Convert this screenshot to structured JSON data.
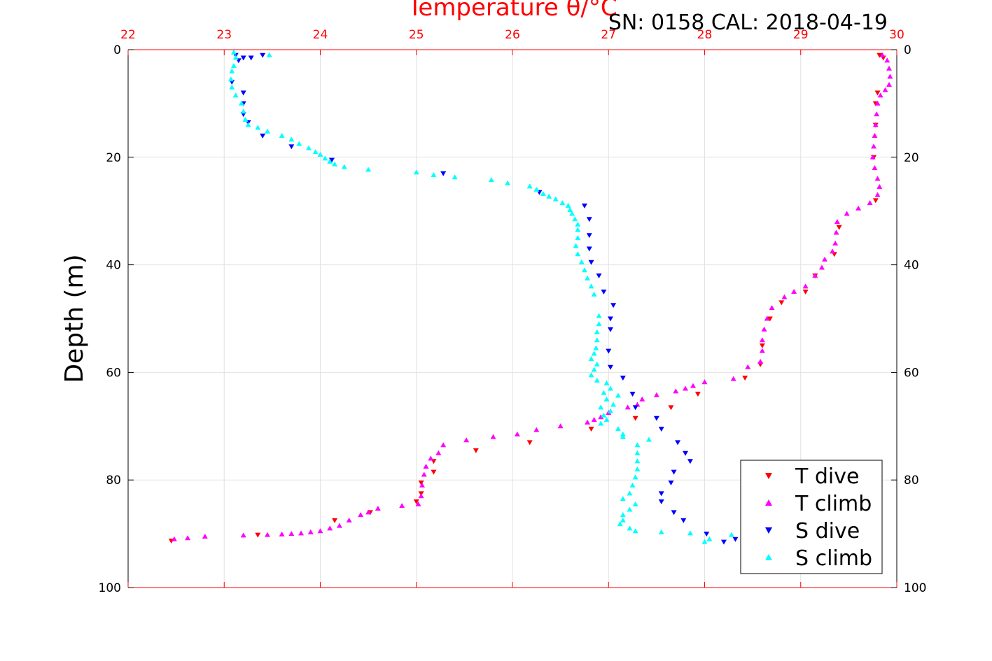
{
  "chart_data": {
    "type": "scatter",
    "title": "Temperature θ/°C",
    "annotation": "SN: 0158  CAL: 2018-04-19",
    "xlabel": "Temperature θ/°C",
    "ylabel": "Depth (m)",
    "xlim": [
      22,
      30
    ],
    "ylim": [
      0,
      100
    ],
    "y_inverted": true,
    "x_axis_position": "top",
    "grid": true,
    "legend_position": "bottom-right",
    "x_ticks": [
      22,
      23,
      24,
      25,
      26,
      27,
      28,
      29,
      30
    ],
    "y_ticks": [
      0,
      20,
      40,
      60,
      80,
      100
    ],
    "colors": {
      "axis_top": "#ff0000",
      "axis_other": "#000000",
      "grid": "#e2e2e2"
    },
    "series": [
      {
        "name": "T dive",
        "color": "#ff0000",
        "marker": "triangle-down",
        "points": [
          [
            29.82,
            1
          ],
          [
            29.86,
            1.5
          ],
          [
            29.8,
            8
          ],
          [
            29.78,
            10
          ],
          [
            29.78,
            14
          ],
          [
            29.76,
            20
          ],
          [
            29.78,
            28
          ],
          [
            29.4,
            33
          ],
          [
            29.35,
            38
          ],
          [
            29.15,
            42
          ],
          [
            29.05,
            45
          ],
          [
            28.8,
            47
          ],
          [
            28.68,
            50
          ],
          [
            28.6,
            55
          ],
          [
            28.58,
            58.5
          ],
          [
            28.42,
            61
          ],
          [
            27.93,
            64
          ],
          [
            27.65,
            66.5
          ],
          [
            27.28,
            68.5
          ],
          [
            26.82,
            70.5
          ],
          [
            26.18,
            73
          ],
          [
            25.62,
            74.5
          ],
          [
            25.18,
            76.5
          ],
          [
            25.18,
            78.5
          ],
          [
            25.05,
            80.5
          ],
          [
            25.05,
            82.5
          ],
          [
            25.0,
            84
          ],
          [
            24.52,
            86
          ],
          [
            24.15,
            87.5
          ],
          [
            23.35,
            90.2
          ],
          [
            22.45,
            91.3
          ]
        ]
      },
      {
        "name": "T climb",
        "color": "#ff00ff",
        "marker": "triangle-up",
        "points": [
          [
            29.85,
            1
          ],
          [
            29.9,
            2
          ],
          [
            29.92,
            3.5
          ],
          [
            29.93,
            5
          ],
          [
            29.92,
            6.5
          ],
          [
            29.88,
            7.5
          ],
          [
            29.83,
            8.5
          ],
          [
            29.8,
            10
          ],
          [
            29.79,
            12
          ],
          [
            29.78,
            14
          ],
          [
            29.77,
            16
          ],
          [
            29.76,
            18
          ],
          [
            29.75,
            20
          ],
          [
            29.77,
            22
          ],
          [
            29.8,
            24
          ],
          [
            29.82,
            25.5
          ],
          [
            29.8,
            27
          ],
          [
            29.72,
            28.5
          ],
          [
            29.6,
            29.5
          ],
          [
            29.48,
            30.5
          ],
          [
            29.38,
            32
          ],
          [
            29.37,
            34
          ],
          [
            29.36,
            36
          ],
          [
            29.33,
            37.5
          ],
          [
            29.25,
            39
          ],
          [
            29.22,
            40.5
          ],
          [
            29.15,
            42
          ],
          [
            29.05,
            44
          ],
          [
            28.93,
            45
          ],
          [
            28.83,
            46
          ],
          [
            28.7,
            48
          ],
          [
            28.65,
            50
          ],
          [
            28.62,
            52
          ],
          [
            28.6,
            54
          ],
          [
            28.6,
            56
          ],
          [
            28.58,
            58
          ],
          [
            28.45,
            59
          ],
          [
            28.3,
            61.2
          ],
          [
            28.0,
            61.8
          ],
          [
            27.88,
            62.5
          ],
          [
            27.8,
            63
          ],
          [
            27.7,
            63.5
          ],
          [
            27.5,
            64.2
          ],
          [
            27.35,
            65
          ],
          [
            27.3,
            66
          ],
          [
            27.2,
            66.5
          ],
          [
            27.0,
            67.5
          ],
          [
            26.92,
            68.3
          ],
          [
            26.85,
            68.8
          ],
          [
            26.78,
            69.3
          ],
          [
            26.5,
            70
          ],
          [
            26.25,
            70.7
          ],
          [
            26.05,
            71.5
          ],
          [
            25.8,
            72
          ],
          [
            25.52,
            72.6
          ],
          [
            25.28,
            73.5
          ],
          [
            25.23,
            75
          ],
          [
            25.15,
            76
          ],
          [
            25.1,
            77.5
          ],
          [
            25.08,
            79
          ],
          [
            25.06,
            81
          ],
          [
            25.05,
            83
          ],
          [
            25.02,
            84.5
          ],
          [
            24.85,
            84.8
          ],
          [
            24.6,
            85.3
          ],
          [
            24.5,
            86
          ],
          [
            24.42,
            86.5
          ],
          [
            24.3,
            87.5
          ],
          [
            24.2,
            88.5
          ],
          [
            24.1,
            89
          ],
          [
            24.0,
            89.5
          ],
          [
            23.9,
            89.7
          ],
          [
            23.8,
            89.9
          ],
          [
            23.7,
            90.0
          ],
          [
            23.6,
            90.1
          ],
          [
            23.45,
            90.2
          ],
          [
            23.2,
            90.3
          ],
          [
            22.8,
            90.5
          ],
          [
            22.62,
            90.8
          ],
          [
            22.48,
            91.0
          ]
        ]
      },
      {
        "name": "S dive",
        "color": "#0000ff",
        "marker": "triangle-down",
        "points": [
          [
            23.4,
            1
          ],
          [
            23.28,
            1.5
          ],
          [
            23.12,
            1
          ],
          [
            23.15,
            2
          ],
          [
            23.2,
            1.5
          ],
          [
            23.08,
            6
          ],
          [
            23.2,
            8
          ],
          [
            23.2,
            10
          ],
          [
            23.2,
            12
          ],
          [
            23.25,
            13.5
          ],
          [
            23.4,
            16
          ],
          [
            23.7,
            18
          ],
          [
            24.12,
            20.5
          ],
          [
            25.28,
            23
          ],
          [
            26.28,
            26.5
          ],
          [
            26.75,
            29
          ],
          [
            26.8,
            31.5
          ],
          [
            26.8,
            34.5
          ],
          [
            26.8,
            37
          ],
          [
            26.82,
            39.5
          ],
          [
            26.9,
            42
          ],
          [
            26.95,
            45
          ],
          [
            27.05,
            47.5
          ],
          [
            27.02,
            50
          ],
          [
            27.02,
            52
          ],
          [
            27.0,
            56
          ],
          [
            27.02,
            59
          ],
          [
            27.15,
            61
          ],
          [
            27.25,
            64
          ],
          [
            27.28,
            66.5
          ],
          [
            27.5,
            68.5
          ],
          [
            27.55,
            70.5
          ],
          [
            27.72,
            73
          ],
          [
            27.8,
            75
          ],
          [
            27.85,
            76.5
          ],
          [
            27.68,
            78.5
          ],
          [
            27.65,
            80.5
          ],
          [
            27.55,
            82.5
          ],
          [
            27.55,
            84
          ],
          [
            27.68,
            86
          ],
          [
            27.78,
            87.5
          ],
          [
            28.02,
            90
          ],
          [
            28.2,
            91.5
          ],
          [
            28.32,
            91
          ]
        ]
      },
      {
        "name": "S climb",
        "color": "#00ffff",
        "marker": "triangle-up",
        "points": [
          [
            23.47,
            1
          ],
          [
            23.1,
            0.5
          ],
          [
            23.12,
            1.5
          ],
          [
            23.1,
            3
          ],
          [
            23.08,
            4
          ],
          [
            23.07,
            5.5
          ],
          [
            23.08,
            7
          ],
          [
            23.12,
            8.5
          ],
          [
            23.18,
            10
          ],
          [
            23.2,
            11.5
          ],
          [
            23.22,
            13
          ],
          [
            23.25,
            14
          ],
          [
            23.35,
            14.5
          ],
          [
            23.45,
            15.2
          ],
          [
            23.6,
            16
          ],
          [
            23.7,
            16.7
          ],
          [
            23.78,
            17.5
          ],
          [
            23.88,
            18.3
          ],
          [
            23.95,
            19
          ],
          [
            24.0,
            19.5
          ],
          [
            24.05,
            20.2
          ],
          [
            24.1,
            20.8
          ],
          [
            24.15,
            21.3
          ],
          [
            24.25,
            21.8
          ],
          [
            24.5,
            22.3
          ],
          [
            25.0,
            22.8
          ],
          [
            25.18,
            23.3
          ],
          [
            25.4,
            23.7
          ],
          [
            25.78,
            24.2
          ],
          [
            25.95,
            24.8
          ],
          [
            26.18,
            25.4
          ],
          [
            26.25,
            26
          ],
          [
            26.32,
            26.8
          ],
          [
            26.38,
            27.3
          ],
          [
            26.45,
            27.8
          ],
          [
            26.52,
            28.5
          ],
          [
            26.58,
            29
          ],
          [
            26.6,
            29.8
          ],
          [
            26.62,
            30.5
          ],
          [
            26.65,
            31.5
          ],
          [
            26.68,
            32.5
          ],
          [
            26.68,
            33.5
          ],
          [
            26.68,
            35
          ],
          [
            26.66,
            36.5
          ],
          [
            26.68,
            38
          ],
          [
            26.72,
            39.5
          ],
          [
            26.75,
            41
          ],
          [
            26.78,
            42.5
          ],
          [
            26.82,
            44
          ],
          [
            26.85,
            45.5
          ],
          [
            26.9,
            49.5
          ],
          [
            26.9,
            51
          ],
          [
            26.88,
            52.5
          ],
          [
            26.88,
            54
          ],
          [
            26.87,
            55.5
          ],
          [
            26.85,
            56.5
          ],
          [
            26.82,
            57.5
          ],
          [
            26.88,
            58.5
          ],
          [
            26.85,
            59.5
          ],
          [
            26.82,
            60.5
          ],
          [
            26.88,
            61.5
          ],
          [
            26.98,
            62
          ],
          [
            27.02,
            63
          ],
          [
            26.95,
            63.8
          ],
          [
            27.1,
            64.3
          ],
          [
            26.98,
            65
          ],
          [
            27.05,
            66
          ],
          [
            26.92,
            66.5
          ],
          [
            27.02,
            67.2
          ],
          [
            26.95,
            68
          ],
          [
            26.98,
            68.8
          ],
          [
            26.92,
            69.5
          ],
          [
            27.1,
            70.5
          ],
          [
            27.15,
            71.5
          ],
          [
            27.15,
            72
          ],
          [
            27.42,
            72.5
          ],
          [
            27.3,
            73.5
          ],
          [
            27.3,
            75
          ],
          [
            27.3,
            76.5
          ],
          [
            27.3,
            78
          ],
          [
            27.28,
            79.5
          ],
          [
            27.25,
            81
          ],
          [
            27.22,
            82.5
          ],
          [
            27.15,
            83.5
          ],
          [
            27.28,
            84.5
          ],
          [
            27.22,
            85.5
          ],
          [
            27.15,
            86.5
          ],
          [
            27.15,
            87.5
          ],
          [
            27.12,
            88.2
          ],
          [
            27.22,
            89
          ],
          [
            27.28,
            89.5
          ],
          [
            27.55,
            89.7
          ],
          [
            27.85,
            89.9
          ],
          [
            28.28,
            90.2
          ],
          [
            28.05,
            91
          ],
          [
            28.0,
            91.5
          ]
        ]
      }
    ]
  }
}
